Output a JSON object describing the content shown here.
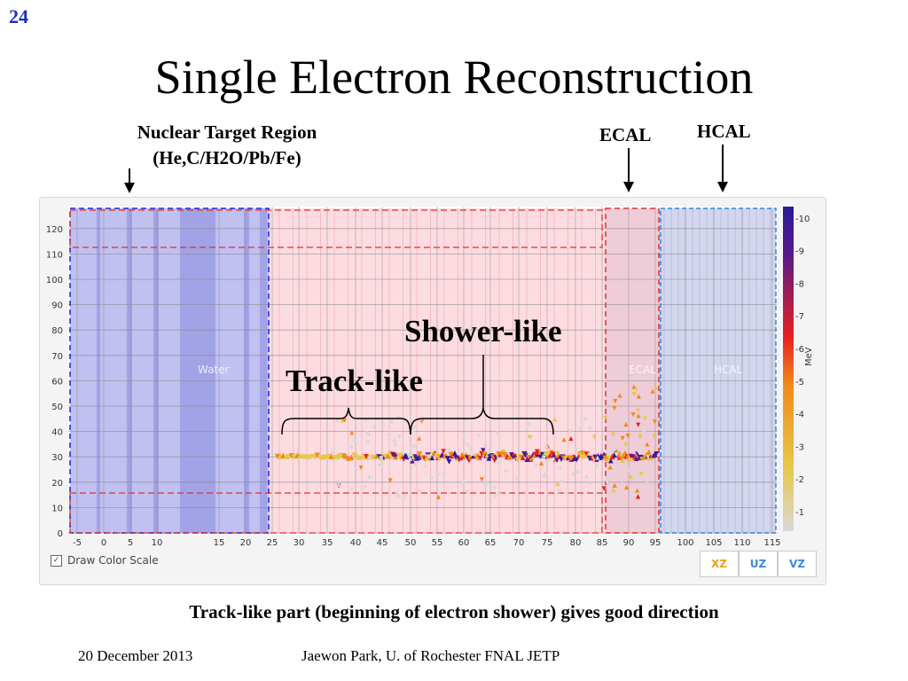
{
  "slide_number": "24",
  "title": "Single Electron Reconstruction",
  "labels": {
    "nuclear_target_line1": "Nuclear Target Region",
    "nuclear_target_line2": "(He,C/H2O/Pb/Fe)",
    "ecal": "ECAL",
    "hcal": "HCAL",
    "shower_like": "Shower-like",
    "track_like": "Track-like"
  },
  "plot": {
    "region_labels": {
      "water": "Water",
      "ecal": "ECAL",
      "hcal": "HCAL"
    },
    "x_ticks": [
      "-5",
      "0",
      "5",
      "10",
      "15",
      "20",
      "25",
      "30",
      "35",
      "40",
      "45",
      "50",
      "55",
      "60",
      "65",
      "70",
      "75",
      "80",
      "85",
      "90",
      "95",
      "100",
      "105",
      "110",
      "115"
    ],
    "y_ticks": [
      "0",
      "10",
      "20",
      "30",
      "40",
      "50",
      "60",
      "70",
      "80",
      "90",
      "100",
      "110",
      "120"
    ],
    "colorbar_ticks": [
      "-1",
      "-2",
      "-3",
      "-4",
      "-5",
      "-6",
      "-7",
      "-8",
      "-9",
      "-10"
    ],
    "colorbar_unit": "MeV",
    "colors": {
      "cold": "#d8d8d8",
      "low": "#e6c84a",
      "mid": "#f08a1c",
      "high": "#e82020",
      "top": "#5a1a8a",
      "max": "#2a1a9a"
    }
  },
  "controls": {
    "draw_color_scale": "Draw Color Scale",
    "draw_color_scale_checked": true,
    "views": [
      "XZ",
      "UZ",
      "VZ"
    ],
    "view_colors": [
      "#e8a020",
      "#3a8ad8",
      "#3a8ad8"
    ]
  },
  "caption": "Track-like part (beginning of electron shower) gives good direction",
  "footer": {
    "date": "20 December 2013",
    "author": "Jaewon Park, U. of Rochester  FNAL JETP"
  }
}
